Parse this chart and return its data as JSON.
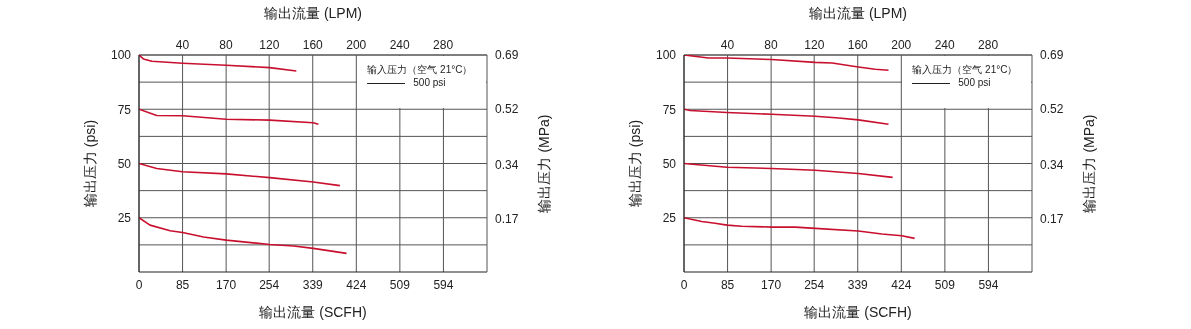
{
  "chart_data": [
    {
      "type": "line",
      "xlabel": "输出流量 (SCFH)",
      "x2label": "输出流量 (LPM)",
      "ylabel": "输出压力 (psi)",
      "y2label": "输出压力 (MPa)",
      "annotations": [
        "输入压力（空气 21°C）",
        "500 psi"
      ],
      "xlim": [
        0,
        679
      ],
      "xticks": [
        0,
        85,
        170,
        254,
        339,
        424,
        509,
        594
      ],
      "x2lim": [
        0,
        320.4
      ],
      "x2ticks": [
        40,
        80,
        120,
        160,
        200,
        240,
        280
      ],
      "ylim": [
        0,
        100
      ],
      "yticks": [
        {
          "value": 12.5,
          "label": null
        },
        25,
        {
          "value": 37.5,
          "label": null
        },
        50,
        {
          "value": 62.5,
          "label": null
        },
        75,
        {
          "value": 87.5,
          "label": null
        },
        100
      ],
      "y2lim": [
        0,
        0.69
      ],
      "y2ticks": [
        0.17,
        0.34,
        0.52,
        0.69
      ],
      "grid": true,
      "marker": "none",
      "series": [
        {
          "color": "#c8102e",
          "x": [
            0,
            8.5,
            25,
            85,
            170,
            255,
            307
          ],
          "values": [
            100,
            98.2,
            97.1,
            96.2,
            95.3,
            94.2,
            92.6
          ]
        },
        {
          "color": "#c8102e",
          "x": [
            0,
            34.6,
            85,
            170,
            255,
            340,
            350
          ],
          "values": [
            75,
            72.1,
            72.0,
            70.4,
            70.0,
            68.8,
            68.1
          ]
        },
        {
          "color": "#c8102e",
          "x": [
            0,
            34.6,
            85,
            170,
            255,
            340,
            392
          ],
          "values": [
            50,
            47.7,
            46.2,
            45.2,
            43.5,
            41.5,
            39.8
          ]
        },
        {
          "color": "#c8102e",
          "x": [
            0,
            21.5,
            60.7,
            85,
            126,
            170,
            255,
            302,
            340,
            405
          ],
          "values": [
            25,
            21.6,
            19.0,
            18.2,
            16.1,
            14.7,
            12.7,
            12.0,
            10.9,
            8.6
          ]
        }
      ]
    },
    {
      "type": "line",
      "xlabel": "输出流量 (SCFH)",
      "x2label": "输出流量 (LPM)",
      "ylabel": "输出压力 (psi)",
      "y2label": "输出压力 (MPa)",
      "annotations": [
        "输入压力（空气 21°C）",
        "500 psi"
      ],
      "xlim": [
        0,
        679
      ],
      "xticks": [
        0,
        85,
        170,
        254,
        339,
        424,
        509,
        594
      ],
      "x2lim": [
        0,
        320.4
      ],
      "x2ticks": [
        40,
        80,
        120,
        160,
        200,
        240,
        280
      ],
      "ylim": [
        0,
        100
      ],
      "yticks": [
        {
          "value": 12.5,
          "label": null
        },
        25,
        {
          "value": 37.5,
          "label": null
        },
        50,
        {
          "value": 62.5,
          "label": null
        },
        75,
        {
          "value": 87.5,
          "label": null
        },
        100
      ],
      "y2lim": [
        0,
        0.69
      ],
      "y2ticks": [
        0.17,
        0.34,
        0.52,
        0.69
      ],
      "grid": true,
      "marker": "none",
      "series": [
        {
          "color": "#c8102e",
          "x": [
            0,
            47.6,
            84,
            171,
            256,
            289,
            340,
            373,
            399
          ],
          "values": [
            100,
            98.6,
            98.6,
            97.9,
            96.6,
            96.3,
            94.5,
            93.4,
            93.0
          ]
        },
        {
          "color": "#c8102e",
          "x": [
            0,
            11.7,
            84,
            171,
            256,
            302,
            340,
            399
          ],
          "values": [
            75,
            74.4,
            73.5,
            72.7,
            71.8,
            71.0,
            70.1,
            68.1
          ]
        },
        {
          "color": "#c8102e",
          "x": [
            0,
            84,
            171,
            256,
            340,
            407
          ],
          "values": [
            50,
            48.3,
            47.7,
            46.9,
            45.4,
            43.6
          ]
        },
        {
          "color": "#c8102e",
          "x": [
            0,
            34.5,
            60.6,
            84,
            112.7,
            171,
            217,
            256,
            340,
            386,
            425,
            450
          ],
          "values": [
            25,
            23.3,
            22.5,
            21.6,
            21.1,
            20.7,
            20.7,
            20.1,
            18.9,
            17.5,
            16.7,
            15.5
          ]
        }
      ]
    }
  ]
}
